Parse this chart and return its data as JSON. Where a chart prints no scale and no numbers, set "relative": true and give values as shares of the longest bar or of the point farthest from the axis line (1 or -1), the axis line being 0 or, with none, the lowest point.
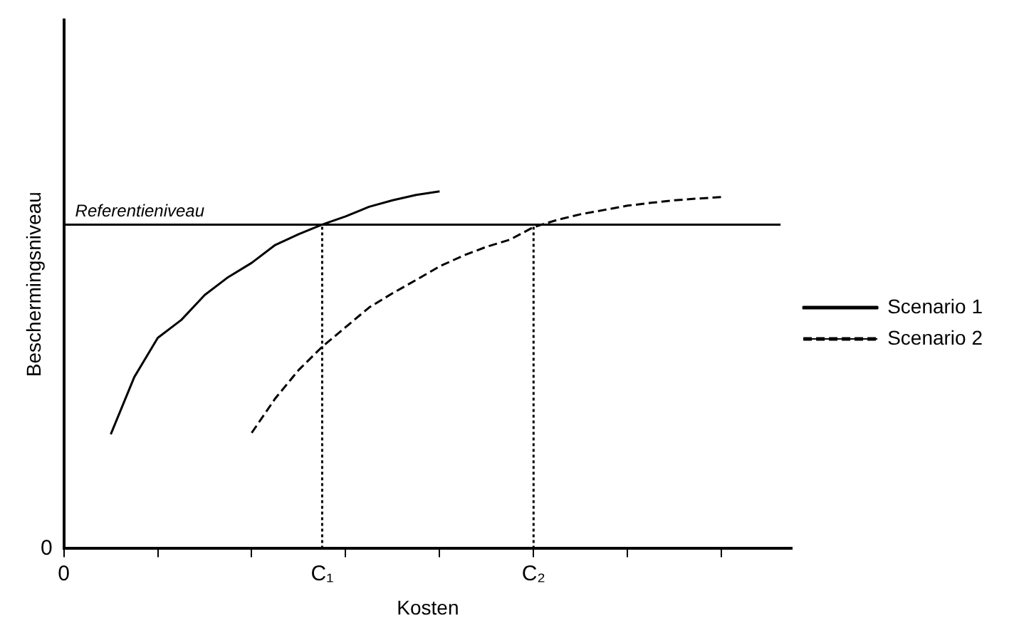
{
  "chart_data": {
    "type": "line",
    "relative": true,
    "xlabel": "Kosten",
    "ylabel": "Beschermingsniveau",
    "categories": [
      "0",
      null,
      null,
      null,
      null,
      null,
      null,
      null,
      null,
      null,
      null,
      "C₁",
      null,
      null,
      null,
      null,
      null,
      null,
      null,
      null,
      "C₂",
      null,
      null,
      null,
      null,
      null,
      null,
      null,
      null,
      null,
      null,
      null
    ],
    "series": [
      {
        "name": "Scenario 1",
        "color": "#000000",
        "line_style": "solid",
        "values": [
          null,
          null,
          0.32,
          0.48,
          0.59,
          0.64,
          0.71,
          0.76,
          0.8,
          0.85,
          0.88,
          0.907,
          0.93,
          0.957,
          0.975,
          0.99,
          1,
          null,
          null,
          null,
          null,
          null,
          null,
          null,
          null,
          null,
          null,
          null,
          null,
          null,
          null,
          null
        ]
      },
      {
        "name": "Scenario 2",
        "color": "#000000",
        "line_style": "dashed",
        "values": [
          null,
          null,
          null,
          null,
          null,
          null,
          null,
          null,
          0.324,
          0.42,
          0.5,
          0.565,
          0.62,
          0.675,
          0.715,
          0.752,
          0.79,
          0.82,
          0.845,
          0.865,
          0.9,
          0.92,
          0.936,
          0.948,
          0.96,
          0.968,
          0.975,
          0.98,
          0.984,
          null,
          null,
          null
        ]
      }
    ],
    "ref_lines": [
      {
        "axis": "y",
        "value": 0.907,
        "label": "Referentieniveau",
        "line_style": "solid"
      },
      {
        "axis": "x",
        "value": "C₁",
        "line_style": "dotted"
      },
      {
        "axis": "x",
        "value": "C₂",
        "line_style": "dotted"
      }
    ],
    "annotations": [
      "0"
    ],
    "legend": "right",
    "grid": false,
    "marker": "none"
  }
}
